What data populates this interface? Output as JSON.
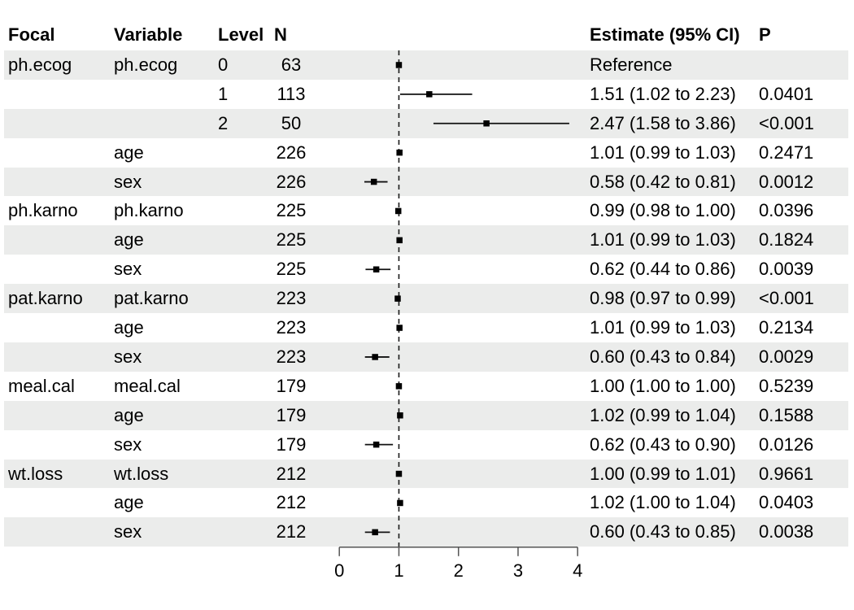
{
  "header": {
    "focal": "Focal",
    "variable": "Variable",
    "level": "Level",
    "n": "N",
    "estimate": "Estimate (95% CI)",
    "p": "P"
  },
  "colors": {
    "band": "#ebeceb",
    "text": "#000000",
    "axis_line": "#555555",
    "reference_line": "#1a1a1a",
    "marker": "#000000",
    "ci_line": "#111111"
  },
  "axis": {
    "tick_labels": [
      "0",
      "1",
      "2",
      "3",
      "4"
    ]
  },
  "rows": [
    {
      "focal": "ph.ecog",
      "variable": "ph.ecog",
      "level": "0",
      "n": "63",
      "estimate": "Reference",
      "p": "",
      "est": 1.0,
      "lo": null,
      "hi": null,
      "reference": true
    },
    {
      "focal": "",
      "variable": "",
      "level": "1",
      "n": "113",
      "estimate": "1.51 (1.02 to 2.23)",
      "p": "0.0401",
      "est": 1.51,
      "lo": 1.02,
      "hi": 2.23,
      "reference": false
    },
    {
      "focal": "",
      "variable": "",
      "level": "2",
      "n": "50",
      "estimate": "2.47 (1.58 to 3.86)",
      "p": "<0.001",
      "est": 2.47,
      "lo": 1.58,
      "hi": 3.86,
      "reference": false
    },
    {
      "focal": "",
      "variable": "age",
      "level": "",
      "n": "226",
      "estimate": "1.01 (0.99 to 1.03)",
      "p": "0.2471",
      "est": 1.01,
      "lo": 0.99,
      "hi": 1.03,
      "reference": false
    },
    {
      "focal": "",
      "variable": "sex",
      "level": "",
      "n": "226",
      "estimate": "0.58 (0.42 to 0.81)",
      "p": "0.0012",
      "est": 0.58,
      "lo": 0.42,
      "hi": 0.81,
      "reference": false
    },
    {
      "focal": "ph.karno",
      "variable": "ph.karno",
      "level": "",
      "n": "225",
      "estimate": "0.99 (0.98 to 1.00)",
      "p": "0.0396",
      "est": 0.99,
      "lo": 0.98,
      "hi": 1.0,
      "reference": false
    },
    {
      "focal": "",
      "variable": "age",
      "level": "",
      "n": "225",
      "estimate": "1.01 (0.99 to 1.03)",
      "p": "0.1824",
      "est": 1.01,
      "lo": 0.99,
      "hi": 1.03,
      "reference": false
    },
    {
      "focal": "",
      "variable": "sex",
      "level": "",
      "n": "225",
      "estimate": "0.62 (0.44 to 0.86)",
      "p": "0.0039",
      "est": 0.62,
      "lo": 0.44,
      "hi": 0.86,
      "reference": false
    },
    {
      "focal": "pat.karno",
      "variable": "pat.karno",
      "level": "",
      "n": "223",
      "estimate": "0.98 (0.97 to 0.99)",
      "p": "<0.001",
      "est": 0.98,
      "lo": 0.97,
      "hi": 0.99,
      "reference": false
    },
    {
      "focal": "",
      "variable": "age",
      "level": "",
      "n": "223",
      "estimate": "1.01 (0.99 to 1.03)",
      "p": "0.2134",
      "est": 1.01,
      "lo": 0.99,
      "hi": 1.03,
      "reference": false
    },
    {
      "focal": "",
      "variable": "sex",
      "level": "",
      "n": "223",
      "estimate": "0.60 (0.43 to 0.84)",
      "p": "0.0029",
      "est": 0.6,
      "lo": 0.43,
      "hi": 0.84,
      "reference": false
    },
    {
      "focal": "meal.cal",
      "variable": "meal.cal",
      "level": "",
      "n": "179",
      "estimate": "1.00 (1.00 to 1.00)",
      "p": "0.5239",
      "est": 1.0,
      "lo": 1.0,
      "hi": 1.0,
      "reference": false
    },
    {
      "focal": "",
      "variable": "age",
      "level": "",
      "n": "179",
      "estimate": "1.02 (0.99 to 1.04)",
      "p": "0.1588",
      "est": 1.02,
      "lo": 0.99,
      "hi": 1.04,
      "reference": false
    },
    {
      "focal": "",
      "variable": "sex",
      "level": "",
      "n": "179",
      "estimate": "0.62 (0.43 to 0.90)",
      "p": "0.0126",
      "est": 0.62,
      "lo": 0.43,
      "hi": 0.9,
      "reference": false
    },
    {
      "focal": "wt.loss",
      "variable": "wt.loss",
      "level": "",
      "n": "212",
      "estimate": "1.00 (0.99 to 1.01)",
      "p": "0.9661",
      "est": 1.0,
      "lo": 0.99,
      "hi": 1.01,
      "reference": false
    },
    {
      "focal": "",
      "variable": "age",
      "level": "",
      "n": "212",
      "estimate": "1.02 (1.00 to 1.04)",
      "p": "0.0403",
      "est": 1.02,
      "lo": 1.0,
      "hi": 1.04,
      "reference": false
    },
    {
      "focal": "",
      "variable": "sex",
      "level": "",
      "n": "212",
      "estimate": "0.60 (0.43 to 0.85)",
      "p": "0.0038",
      "est": 0.6,
      "lo": 0.43,
      "hi": 0.85,
      "reference": false
    }
  ],
  "chart_data": {
    "type": "scatter",
    "subtype": "forest-plot",
    "title": "",
    "xlabel": "",
    "ylabel": "",
    "xlim": [
      0,
      4
    ],
    "x_ticks": [
      0,
      1,
      2,
      3,
      4
    ],
    "reference_line_x": 1,
    "grid": false,
    "legend": false,
    "points": [
      {
        "focal": "ph.ecog",
        "variable": "ph.ecog",
        "level": "0",
        "n": 63,
        "est": 1.0,
        "lo": null,
        "hi": null,
        "p": null,
        "note": "Reference"
      },
      {
        "focal": "ph.ecog",
        "variable": "ph.ecog",
        "level": "1",
        "n": 113,
        "est": 1.51,
        "lo": 1.02,
        "hi": 2.23,
        "p": "0.0401"
      },
      {
        "focal": "ph.ecog",
        "variable": "ph.ecog",
        "level": "2",
        "n": 50,
        "est": 2.47,
        "lo": 1.58,
        "hi": 3.86,
        "p": "<0.001"
      },
      {
        "focal": "ph.ecog",
        "variable": "age",
        "level": "",
        "n": 226,
        "est": 1.01,
        "lo": 0.99,
        "hi": 1.03,
        "p": "0.2471"
      },
      {
        "focal": "ph.ecog",
        "variable": "sex",
        "level": "",
        "n": 226,
        "est": 0.58,
        "lo": 0.42,
        "hi": 0.81,
        "p": "0.0012"
      },
      {
        "focal": "ph.karno",
        "variable": "ph.karno",
        "level": "",
        "n": 225,
        "est": 0.99,
        "lo": 0.98,
        "hi": 1.0,
        "p": "0.0396"
      },
      {
        "focal": "ph.karno",
        "variable": "age",
        "level": "",
        "n": 225,
        "est": 1.01,
        "lo": 0.99,
        "hi": 1.03,
        "p": "0.1824"
      },
      {
        "focal": "ph.karno",
        "variable": "sex",
        "level": "",
        "n": 225,
        "est": 0.62,
        "lo": 0.44,
        "hi": 0.86,
        "p": "0.0039"
      },
      {
        "focal": "pat.karno",
        "variable": "pat.karno",
        "level": "",
        "n": 223,
        "est": 0.98,
        "lo": 0.97,
        "hi": 0.99,
        "p": "<0.001"
      },
      {
        "focal": "pat.karno",
        "variable": "age",
        "level": "",
        "n": 223,
        "est": 1.01,
        "lo": 0.99,
        "hi": 1.03,
        "p": "0.2134"
      },
      {
        "focal": "pat.karno",
        "variable": "sex",
        "level": "",
        "n": 223,
        "est": 0.6,
        "lo": 0.43,
        "hi": 0.84,
        "p": "0.0029"
      },
      {
        "focal": "meal.cal",
        "variable": "meal.cal",
        "level": "",
        "n": 179,
        "est": 1.0,
        "lo": 1.0,
        "hi": 1.0,
        "p": "0.5239"
      },
      {
        "focal": "meal.cal",
        "variable": "age",
        "level": "",
        "n": 179,
        "est": 1.02,
        "lo": 0.99,
        "hi": 1.04,
        "p": "0.1588"
      },
      {
        "focal": "meal.cal",
        "variable": "sex",
        "level": "",
        "n": 179,
        "est": 0.62,
        "lo": 0.43,
        "hi": 0.9,
        "p": "0.0126"
      },
      {
        "focal": "wt.loss",
        "variable": "wt.loss",
        "level": "",
        "n": 212,
        "est": 1.0,
        "lo": 0.99,
        "hi": 1.01,
        "p": "0.9661"
      },
      {
        "focal": "wt.loss",
        "variable": "age",
        "level": "",
        "n": 212,
        "est": 1.02,
        "lo": 1.0,
        "hi": 1.04,
        "p": "0.0403"
      },
      {
        "focal": "wt.loss",
        "variable": "sex",
        "level": "",
        "n": 212,
        "est": 0.6,
        "lo": 0.43,
        "hi": 0.85,
        "p": "0.0038"
      }
    ]
  }
}
